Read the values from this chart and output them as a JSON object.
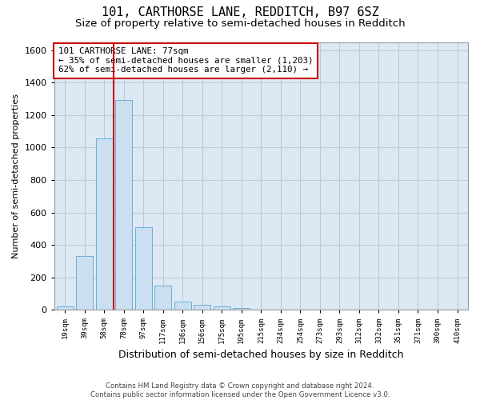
{
  "title": "101, CARTHORSE LANE, REDDITCH, B97 6SZ",
  "subtitle": "Size of property relative to semi-detached houses in Redditch",
  "xlabel": "Distribution of semi-detached houses by size in Redditch",
  "ylabel": "Number of semi-detached properties",
  "footer_line1": "Contains HM Land Registry data © Crown copyright and database right 2024.",
  "footer_line2": "Contains public sector information licensed under the Open Government Licence v3.0.",
  "bins": [
    "19sqm",
    "39sqm",
    "58sqm",
    "78sqm",
    "97sqm",
    "117sqm",
    "136sqm",
    "156sqm",
    "175sqm",
    "195sqm",
    "215sqm",
    "234sqm",
    "254sqm",
    "273sqm",
    "293sqm",
    "312sqm",
    "332sqm",
    "351sqm",
    "371sqm",
    "390sqm",
    "410sqm"
  ],
  "values": [
    20,
    330,
    1055,
    1295,
    510,
    150,
    50,
    30,
    20,
    10,
    0,
    0,
    0,
    0,
    0,
    0,
    0,
    0,
    0,
    0,
    0
  ],
  "bar_color": "#ccdff0",
  "bar_edge_color": "#6baed6",
  "property_line_bin_index": 3,
  "annotation_text_line1": "101 CARTHORSE LANE: 77sqm",
  "annotation_text_line2": "← 35% of semi-detached houses are smaller (1,203)",
  "annotation_text_line3": "62% of semi-detached houses are larger (2,110) →",
  "annotation_box_facecolor": "#ffffff",
  "annotation_box_edgecolor": "#cc0000",
  "line_color": "#cc0000",
  "ylim": [
    0,
    1650
  ],
  "yticks": [
    0,
    200,
    400,
    600,
    800,
    1000,
    1200,
    1400,
    1600
  ],
  "grid_color": "#c0c8d0",
  "plot_bg_color": "#dce9f5",
  "fig_bg_color": "#ffffff",
  "title_fontsize": 11,
  "subtitle_fontsize": 9.5,
  "xlabel_fontsize": 9,
  "ylabel_fontsize": 8,
  "bar_width": 0.85
}
